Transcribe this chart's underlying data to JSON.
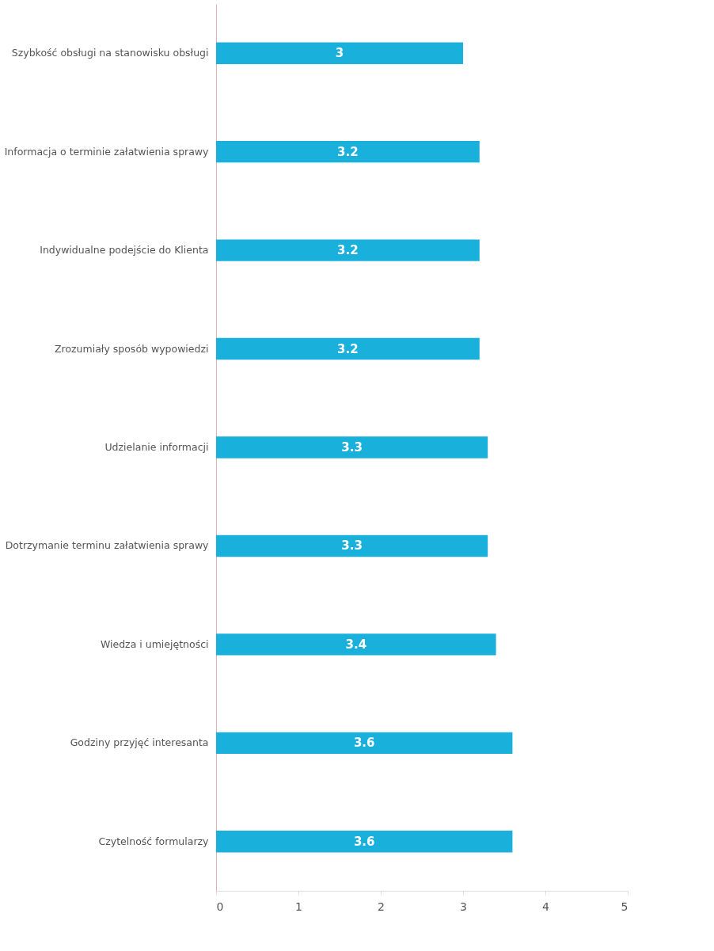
{
  "chart_data": {
    "type": "bar",
    "orientation": "horizontal",
    "categories": [
      "Szybkość obsługi na stanowisku obsługi",
      "Informacja o terminie załatwienia sprawy",
      "Indywidualne podejście do Klienta",
      "Zrozumiały sposób wypowiedzi",
      "Udzielanie informacji",
      "Dotrzymanie terminu załatwienia sprawy",
      "Wiedza i umiejętności",
      "Godziny przyjęć interesanta",
      "Czytelność formularzy"
    ],
    "values": [
      3,
      3.2,
      3.2,
      3.2,
      3.3,
      3.3,
      3.4,
      3.6,
      3.6
    ],
    "color": "#1ab0dc",
    "xlim": [
      0,
      5
    ],
    "xticks": [
      0,
      1,
      2,
      3,
      4,
      5
    ],
    "data_labels": true
  }
}
